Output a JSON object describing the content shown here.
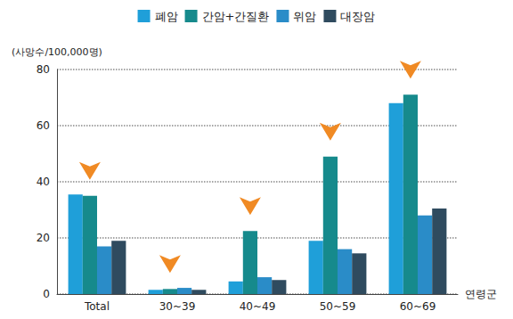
{
  "chart_data": {
    "type": "bar",
    "y_label": "(사망수/100,000명)",
    "x_label": "연령군",
    "categories": [
      "Total",
      "30~39",
      "40~49",
      "50~59",
      "60~69"
    ],
    "series": [
      {
        "name": "폐암",
        "color": "#1f9fd9",
        "values": [
          35.5,
          1.5,
          4.5,
          19,
          68
        ]
      },
      {
        "name": "간암+간질환",
        "color": "#168a8c",
        "values": [
          35,
          1.8,
          22.5,
          49,
          71
        ]
      },
      {
        "name": "위암",
        "color": "#2a8cc8",
        "values": [
          17,
          2.2,
          6,
          16,
          28
        ]
      },
      {
        "name": "대장암",
        "color": "#2f4b5f",
        "values": [
          19,
          1.5,
          5,
          14.5,
          30.5
        ]
      }
    ],
    "ylim": [
      0,
      80
    ],
    "yticks": [
      0,
      20,
      40,
      60,
      80
    ],
    "grid": true,
    "legend": "top"
  }
}
